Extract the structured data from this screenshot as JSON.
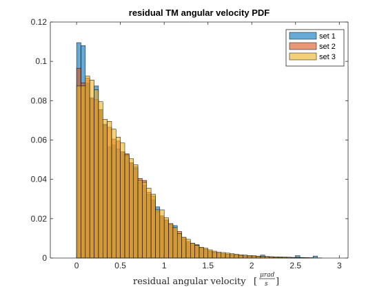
{
  "chart_data": {
    "type": "bar",
    "title": "residual TM angular velocity PDF",
    "xlabel": "residual angular velocity",
    "xlabel_unit_numerator": "μrad",
    "xlabel_unit_denominator": "s",
    "xlim": [
      -0.3,
      3.1
    ],
    "ylim": [
      0,
      0.12
    ],
    "xticks": [
      0,
      0.5,
      1,
      1.5,
      2,
      2.5,
      3
    ],
    "xtick_labels": [
      "0",
      "0.5",
      "1",
      "1.5",
      "2",
      "2.5",
      "3"
    ],
    "yticks": [
      0,
      0.02,
      0.04,
      0.06,
      0.08,
      0.1,
      0.12
    ],
    "ytick_labels": [
      "0",
      "0.02",
      "0.04",
      "0.06",
      "0.08",
      "0.1",
      "0.12"
    ],
    "legend_position": "top-right",
    "bin_width": 0.05,
    "series": [
      {
        "name": "set 1",
        "color": "#0072BD",
        "bins": [
          [
            0,
            0.1095
          ],
          [
            0.05,
            0.108
          ],
          [
            0.1,
            0.089
          ],
          [
            0.15,
            0.081
          ],
          [
            0.2,
            0.0875
          ],
          [
            0.25,
            0.0755
          ],
          [
            0.3,
            0.068
          ],
          [
            0.35,
            0.0565
          ],
          [
            0.4,
            0.0575
          ],
          [
            0.45,
            0.0555
          ],
          [
            0.5,
            0.054
          ],
          [
            0.55,
            0.052
          ],
          [
            0.6,
            0.048
          ],
          [
            0.65,
            0.0465
          ],
          [
            0.7,
            0.0385
          ],
          [
            0.75,
            0.037
          ],
          [
            0.8,
            0.0325
          ],
          [
            0.85,
            0.0295
          ],
          [
            0.9,
            0.026
          ],
          [
            0.95,
            0.021
          ],
          [
            1.0,
            0.019
          ],
          [
            1.05,
            0.017
          ],
          [
            1.1,
            0.0165
          ],
          [
            1.15,
            0.0125
          ],
          [
            1.2,
            0.0095
          ],
          [
            1.25,
            0.008
          ],
          [
            1.3,
            0.007
          ],
          [
            1.35,
            0.0068
          ],
          [
            1.4,
            0.005
          ],
          [
            1.45,
            0.0045
          ],
          [
            1.5,
            0.0035
          ],
          [
            1.55,
            0.0028
          ],
          [
            1.6,
            0.0025
          ],
          [
            1.65,
            0.0022
          ],
          [
            1.7,
            0.002
          ],
          [
            1.75,
            0.0018
          ],
          [
            1.8,
            0.0015
          ],
          [
            1.85,
            0.0013
          ],
          [
            1.9,
            0.0012
          ],
          [
            1.95,
            0.001
          ],
          [
            2.0,
            0.0009
          ],
          [
            2.05,
            0.0008
          ],
          [
            2.1,
            0.0015
          ],
          [
            2.15,
            0.0007
          ],
          [
            2.2,
            0.0006
          ],
          [
            2.25,
            0.0005
          ],
          [
            2.3,
            0.0005
          ],
          [
            2.35,
            0.0004
          ],
          [
            2.4,
            0.0004
          ],
          [
            2.45,
            0.0003
          ],
          [
            2.5,
            0.0012
          ],
          [
            2.55,
            0.0003
          ],
          [
            2.6,
            0.0002
          ],
          [
            2.65,
            0.0002
          ],
          [
            2.7,
            0.001
          ],
          [
            2.75,
            0.0001
          ]
        ]
      },
      {
        "name": "set 2",
        "color": "#D95319",
        "bins": [
          [
            0,
            0.0965
          ],
          [
            0.05,
            0.089
          ],
          [
            0.1,
            0.0915
          ],
          [
            0.15,
            0.0815
          ],
          [
            0.2,
            0.0805
          ],
          [
            0.25,
            0.0755
          ],
          [
            0.3,
            0.0675
          ],
          [
            0.35,
            0.0665
          ],
          [
            0.4,
            0.0605
          ],
          [
            0.45,
            0.0595
          ],
          [
            0.5,
            0.054
          ],
          [
            0.55,
            0.053
          ],
          [
            0.6,
            0.0485
          ],
          [
            0.65,
            0.0455
          ],
          [
            0.7,
            0.0405
          ],
          [
            0.75,
            0.0395
          ],
          [
            0.8,
            0.0335
          ],
          [
            0.85,
            0.0315
          ],
          [
            0.9,
            0.0235
          ],
          [
            0.95,
            0.0215
          ],
          [
            1.0,
            0.0195
          ],
          [
            1.05,
            0.0175
          ],
          [
            1.1,
            0.015
          ],
          [
            1.15,
            0.0135
          ],
          [
            1.2,
            0.0105
          ],
          [
            1.25,
            0.0085
          ],
          [
            1.3,
            0.0075
          ],
          [
            1.35,
            0.0065
          ],
          [
            1.4,
            0.0055
          ],
          [
            1.45,
            0.0045
          ],
          [
            1.5,
            0.0035
          ],
          [
            1.55,
            0.003
          ],
          [
            1.6,
            0.0025
          ],
          [
            1.65,
            0.0022
          ],
          [
            1.7,
            0.002
          ],
          [
            1.75,
            0.0017
          ],
          [
            1.8,
            0.0014
          ],
          [
            1.85,
            0.0012
          ],
          [
            1.9,
            0.001
          ],
          [
            1.95,
            0.0009
          ],
          [
            2.0,
            0.0008
          ],
          [
            2.05,
            0.0007
          ],
          [
            2.1,
            0.0006
          ],
          [
            2.15,
            0.0005
          ],
          [
            2.2,
            0.0004
          ],
          [
            2.25,
            0.0004
          ],
          [
            2.3,
            0.0003
          ],
          [
            2.35,
            0.0003
          ],
          [
            2.4,
            0.0002
          ],
          [
            2.45,
            0.0002
          ],
          [
            2.5,
            0.0002
          ]
        ]
      },
      {
        "name": "set 3",
        "color": "#EDB120",
        "bins": [
          [
            0,
            0.0875
          ],
          [
            0.05,
            0.0875
          ],
          [
            0.1,
            0.0925
          ],
          [
            0.15,
            0.0905
          ],
          [
            0.2,
            0.0855
          ],
          [
            0.25,
            0.0795
          ],
          [
            0.3,
            0.0705
          ],
          [
            0.35,
            0.0695
          ],
          [
            0.4,
            0.0655
          ],
          [
            0.45,
            0.0615
          ],
          [
            0.5,
            0.0585
          ],
          [
            0.55,
            0.0525
          ],
          [
            0.6,
            0.0505
          ],
          [
            0.65,
            0.0475
          ],
          [
            0.7,
            0.0395
          ],
          [
            0.75,
            0.0385
          ],
          [
            0.8,
            0.0355
          ],
          [
            0.85,
            0.0325
          ],
          [
            0.9,
            0.0245
          ],
          [
            0.95,
            0.0245
          ],
          [
            1.0,
            0.0205
          ],
          [
            1.05,
            0.0175
          ],
          [
            1.1,
            0.0155
          ],
          [
            1.15,
            0.0125
          ],
          [
            1.2,
            0.0105
          ],
          [
            1.25,
            0.0095
          ],
          [
            1.3,
            0.0075
          ],
          [
            1.35,
            0.0065
          ],
          [
            1.4,
            0.0055
          ],
          [
            1.45,
            0.005
          ],
          [
            1.5,
            0.0042
          ],
          [
            1.55,
            0.0035
          ],
          [
            1.6,
            0.003
          ],
          [
            1.65,
            0.0028
          ],
          [
            1.7,
            0.0025
          ],
          [
            1.75,
            0.0022
          ],
          [
            1.8,
            0.002
          ],
          [
            1.85,
            0.0017
          ],
          [
            1.9,
            0.0015
          ],
          [
            1.95,
            0.0013
          ],
          [
            2.0,
            0.0012
          ],
          [
            2.05,
            0.001
          ],
          [
            2.1,
            0.0009
          ],
          [
            2.15,
            0.0008
          ],
          [
            2.2,
            0.0007
          ],
          [
            2.25,
            0.0006
          ],
          [
            2.3,
            0.0005
          ],
          [
            2.35,
            0.0005
          ],
          [
            2.4,
            0.0004
          ],
          [
            2.45,
            0.0003
          ],
          [
            2.5,
            0.0003
          ],
          [
            2.55,
            0.0002
          ],
          [
            2.6,
            0.0002
          ]
        ]
      }
    ]
  }
}
